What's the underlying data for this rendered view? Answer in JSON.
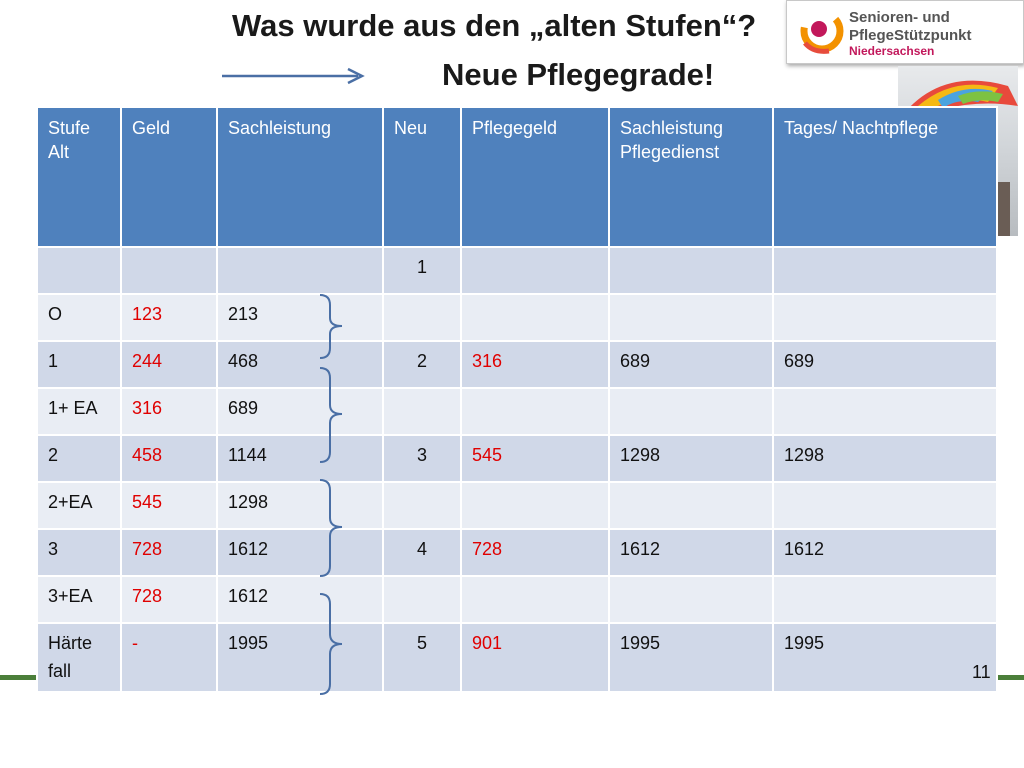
{
  "title_line1": "Was wurde aus den „alten Stufen“?",
  "title_line2": "Neue Pflegegrade!",
  "logo": {
    "line1": "Senioren- und",
    "line2": "PflegeStützpunkt",
    "line3": "Niedersachsen"
  },
  "table": {
    "headers": [
      "Stufe Alt",
      "Geld",
      "Sachleistung",
      "Neu",
      "Pflegegeld",
      "Sachleistung Pflegedienst",
      "Tages/ Nachtpflege"
    ],
    "rows": [
      [
        "",
        "",
        "",
        "1",
        "",
        "",
        ""
      ],
      [
        "O",
        "123",
        "213",
        "",
        "",
        "",
        ""
      ],
      [
        "1",
        "244",
        "468",
        "2",
        "316",
        "689",
        "689"
      ],
      [
        "1+ EA",
        "316",
        "689",
        "",
        "",
        "",
        ""
      ],
      [
        "2",
        "458",
        "1144",
        "3",
        "545",
        "1298",
        "1298"
      ],
      [
        "2+EA",
        "545",
        "1298",
        "",
        "",
        "",
        ""
      ],
      [
        "3",
        "728",
        "1612",
        "4",
        "728",
        "1612",
        "1612"
      ],
      [
        "3+EA",
        "728",
        "1612",
        "",
        "",
        "",
        ""
      ],
      [
        "Härte fall",
        "-",
        "1995",
        "5",
        "901",
        "1995",
        "1995"
      ]
    ]
  },
  "slide_number": "11",
  "colors": {
    "header_blue": "#4f81bd",
    "row_odd": "#d0d8e8",
    "row_even": "#e9edf4",
    "money_red": "#e00000",
    "accent_green": "#4b7f3a"
  }
}
